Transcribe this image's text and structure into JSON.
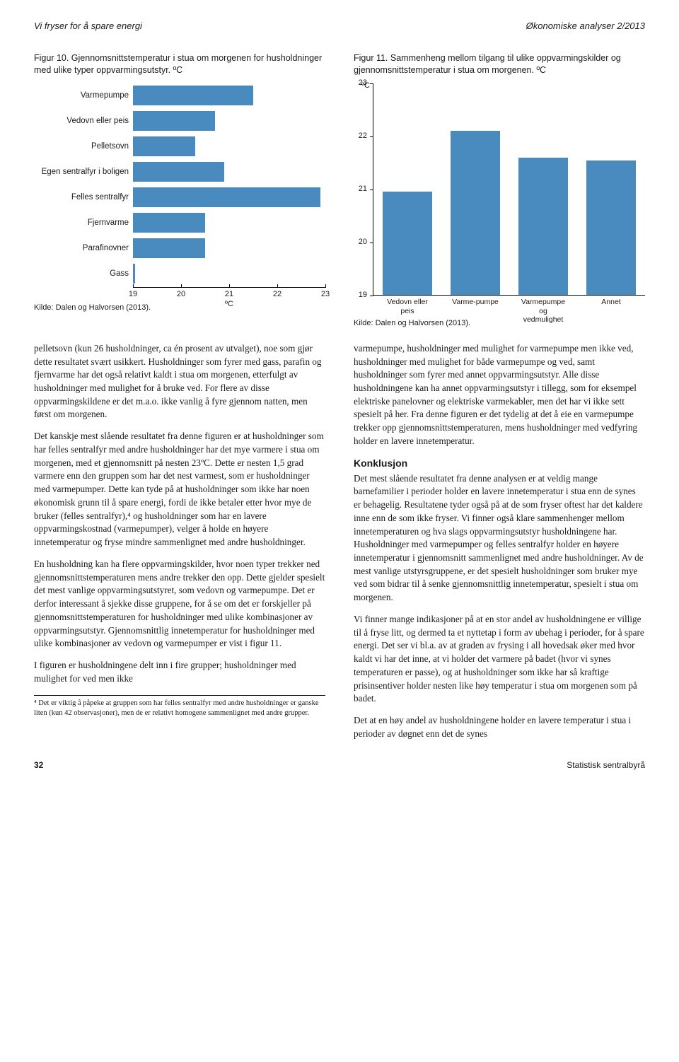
{
  "header": {
    "left": "Vi fryser for å spare energi",
    "right": "Økonomiske analyser 2/2013"
  },
  "figure10": {
    "title": "Figur 10. Gjennomsnittstemperatur i stua om morgenen for husholdninger med ulike typer oppvarmingsutstyr. ºC",
    "type": "bar-horizontal",
    "xmin": 19,
    "xmax": 23,
    "xtick_step": 1,
    "xlabel": "ºC",
    "bar_color": "#4a8bbf",
    "categories": [
      {
        "label": "Varmepumpe",
        "value": 21.5
      },
      {
        "label": "Vedovn eller peis",
        "value": 20.7
      },
      {
        "label": "Pelletsovn",
        "value": 20.3
      },
      {
        "label": "Egen sentralfyr i boligen",
        "value": 20.9
      },
      {
        "label": "Felles sentralfyr",
        "value": 22.9
      },
      {
        "label": "Fjernvarme",
        "value": 20.5
      },
      {
        "label": "Parafinovner",
        "value": 20.5
      },
      {
        "label": "Gass",
        "value": 19.05
      }
    ],
    "source": "Kilde: Dalen og Halvorsen (2013)."
  },
  "figure11": {
    "title": "Figur 11. Sammenheng mellom tilgang til ulike oppvarmingskilder og gjennomsnittstemperatur i stua om morgenen. ºC",
    "type": "bar-vertical",
    "ymin": 19,
    "ymax": 23,
    "ytick_step": 1,
    "ylabel_unit": "ºC",
    "bar_color": "#4a8bbf",
    "categories": [
      {
        "label": "Vedovn eller peis",
        "value": 20.95
      },
      {
        "label": "Varme-pumpe",
        "value": 22.1
      },
      {
        "label": "Varmepumpe og vedmulighet",
        "value": 21.6
      },
      {
        "label": "Annet",
        "value": 21.55
      }
    ],
    "source": "Kilde: Dalen og Halvorsen (2013)."
  },
  "leftCol": {
    "p1": "pelletsovn (kun 26 husholdninger, ca én prosent av utvalget), noe som gjør dette resultatet svært usikkert. Husholdninger som fyrer med gass, parafin og fjernvarme har det også relativt kaldt i stua om morgenen, etterfulgt av husholdninger med mulighet for å bruke ved. For flere av disse oppvarmingskildene er det m.a.o. ikke vanlig å fyre gjennom natten, men først om morgenen.",
    "p2": "Det kanskje mest slående resultatet fra denne figuren er at husholdninger som har felles sentralfyr med andre husholdninger har det mye varmere i stua om morgenen, med et gjennomsnitt på nesten 23ºC. Dette er nesten 1,5 grad varmere enn den gruppen som har det nest varmest, som er husholdninger med varmepumper. Dette kan tyde på at husholdninger som ikke har noen økonomisk grunn til å spare energi, fordi de ikke betaler etter hvor mye de bruker (felles sentralfyr),⁴ og husholdninger som har en lavere oppvarmingskostnad (varmepumper), velger å holde en høyere innetemperatur og fryse mindre sammenlignet med andre husholdninger.",
    "p3": "En husholdning kan ha flere oppvarmingskilder, hvor noen typer trekker ned gjennomsnittstemperaturen mens andre trekker den opp. Dette gjelder spesielt det mest vanlige oppvarmingsutstyret, som vedovn og varmepumpe. Det er derfor interessant å sjekke disse gruppene, for å se om det er forskjeller på gjennomsnittstemperaturen for husholdninger med ulike kombinasjoner av oppvarmingsutstyr. Gjennomsnittlig innetemperatur for husholdninger med ulike kombinasjoner av vedovn og varmepumper er vist i figur 11.",
    "p4": "I figuren er husholdningene delt inn i fire grupper; husholdninger med mulighet for ved men ikke",
    "footnote": "⁴ Det er viktig å påpeke at gruppen som har felles sentralfyr med andre husholdninger er ganske liten (kun 42 observasjoner), men de er relativt homogene sammenlignet med andre grupper."
  },
  "rightCol": {
    "p1": "varmepumpe, husholdninger med mulighet for varmepumpe men ikke ved, husholdninger med mulighet for både varmepumpe og ved, samt husholdninger som fyrer med annet oppvarmingsutstyr. Alle disse husholdningene kan ha annet oppvarmingsutstyr i tillegg, som for eksempel elektriske panelovner og elektriske varmekabler, men det har vi ikke sett spesielt på her. Fra denne figuren er det tydelig at det å eie en varmepumpe trekker opp gjennomsnittstemperaturen, mens husholdninger med vedfyring holder en lavere innetemperatur.",
    "h1": "Konklusjon",
    "p2": "Det mest slående resultatet fra denne analysen er at veldig mange barnefamilier i perioder holder en lavere innetemperatur i stua enn de synes er behagelig. Resultatene tyder også på at de som fryser oftest har det kaldere inne enn de som ikke fryser. Vi finner også klare sammenhenger mellom innetemperaturen og hva slags oppvarmingsutstyr husholdningene har. Husholdninger med varmepumper og felles sentralfyr holder en høyere innetemperatur i gjennomsnitt sammenlignet med andre husholdninger. Av de mest vanlige utstyrsgruppene, er det spesielt husholdninger som bruker mye ved som bidrar til å senke gjennomsnittlig innetemperatur, spesielt i stua om morgenen.",
    "p3": "Vi finner mange indikasjoner på at en stor andel av husholdningene er villige til å fryse litt, og dermed ta et nyttetap i form av ubehag i perioder, for å spare energi. Det ser vi bl.a. av at graden av frysing i all hovedsak øker med hvor kaldt vi har det inne, at vi holder det varmere på badet (hvor vi synes temperaturen er passe), og at husholdninger som ikke har så kraftige prisinsentiver holder nesten like høy temperatur i stua om morgenen som på badet.",
    "p4": "Det at en høy andel av husholdningene holder en lavere temperatur i stua i perioder av døgnet enn det de synes"
  },
  "footer": {
    "page": "32",
    "pub": "Statistisk sentralbyrå"
  }
}
